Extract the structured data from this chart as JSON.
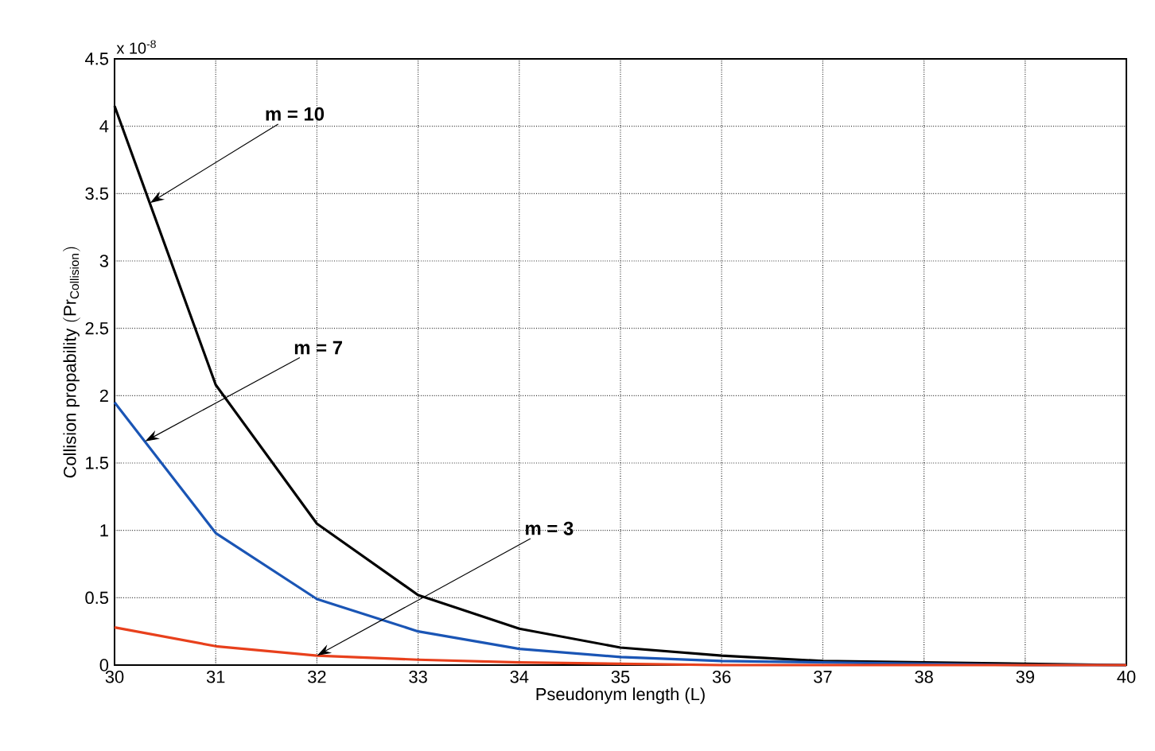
{
  "chart_data": {
    "type": "line",
    "xlabel": "Pseudonym length (L)",
    "ylabel": "\\mathrm{Collision\\ propability\\ (Pr_{Collision})}",
    "x": [
      30,
      31,
      32,
      33,
      34,
      35,
      36,
      37,
      38,
      39,
      40
    ],
    "series": [
      {
        "color": "#000000",
        "values": [
          4.15,
          2.08,
          1.05,
          0.52,
          0.27,
          0.13,
          0.07,
          0.03,
          0.02,
          0.01,
          0.0
        ]
      },
      {
        "color": "#1a55b5",
        "values": [
          1.95,
          0.98,
          0.49,
          0.25,
          0.12,
          0.06,
          0.03,
          0.02,
          0.01,
          0.0,
          0.0
        ]
      },
      {
        "color": "#e8401c",
        "values": [
          0.28,
          0.14,
          0.07,
          0.04,
          0.02,
          0.01,
          0.0,
          0.0,
          0.0,
          0.0,
          0.0
        ]
      }
    ],
    "xlim": [
      30,
      40
    ],
    "ylim": [
      0,
      4.5
    ],
    "xticks": [
      30,
      31,
      32,
      33,
      34,
      35,
      36,
      37,
      38,
      39,
      40
    ],
    "yticks": [
      0,
      0.5,
      1,
      1.5,
      2,
      2.5,
      3,
      3.5,
      4,
      4.5
    ],
    "grid": true,
    "marker": "none",
    "line_style": "solid",
    "annotations": [
      {
        "text": "m = 10",
        "x": 30.35,
        "y": 3.43
      },
      {
        "text": "m = 7",
        "x": 30.3,
        "y": 1.66
      },
      {
        "text": "m = 3",
        "x": 32,
        "y": 0.07
      },
      "x 10$^{-8}$"
    ]
  }
}
